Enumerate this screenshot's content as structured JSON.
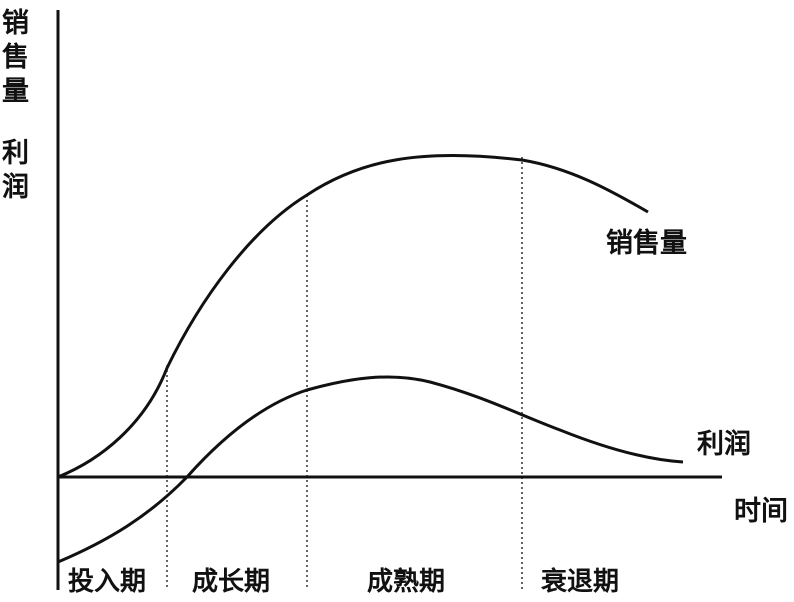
{
  "axes": {
    "y_label_lines": [
      "销",
      "售",
      "量"
    ],
    "y_label2_lines": [
      "利",
      "润"
    ],
    "x_label": "时间"
  },
  "curves": {
    "sales": {
      "label": "销售量"
    },
    "profit": {
      "label": "利润"
    }
  },
  "stages": [
    "投入期",
    "成长期",
    "成熟期",
    "衰退期"
  ],
  "colors": {
    "ink": "#111111",
    "background": "#ffffff"
  }
}
